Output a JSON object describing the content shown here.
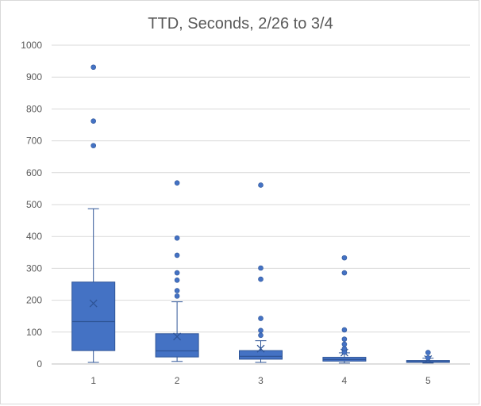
{
  "chart_data": {
    "type": "box",
    "title": "TTD, Seconds, 2/26 to 3/4",
    "xlabel": "",
    "ylabel": "",
    "ylim": [
      0,
      1000
    ],
    "yticks": [
      0,
      100,
      200,
      300,
      400,
      500,
      600,
      700,
      800,
      900,
      1000
    ],
    "categories": [
      "1",
      "2",
      "3",
      "4",
      "5"
    ],
    "grid": true,
    "legend": "none",
    "colors": {
      "box_fill": "#4472C4",
      "box_stroke": "#2F5597",
      "grid": "#d9d9d9",
      "axis": "#bfbfbf",
      "text": "#595959"
    },
    "boxes": [
      {
        "category": "1",
        "min": 5,
        "q1": 42,
        "median": 133,
        "q3": 257,
        "max": 487,
        "mean": 190,
        "outliers": [
          685,
          762,
          931
        ]
      },
      {
        "category": "2",
        "min": 8,
        "q1": 22,
        "median": 41,
        "q3": 95,
        "max": 195,
        "mean": 86,
        "outliers": [
          213,
          230,
          263,
          286,
          341,
          395,
          568
        ]
      },
      {
        "category": "3",
        "min": 5,
        "q1": 15,
        "median": 24,
        "q3": 42,
        "max": 73,
        "mean": 48,
        "outliers": [
          90,
          105,
          143,
          266,
          301,
          561
        ]
      },
      {
        "category": "4",
        "min": 3,
        "q1": 9,
        "median": 14,
        "q3": 21,
        "max": 35,
        "mean": 36,
        "outliers": [
          37,
          48,
          62,
          78,
          107,
          286,
          333
        ]
      },
      {
        "category": "5",
        "min": 3,
        "q1": 5,
        "median": 7,
        "q3": 11,
        "max": 18,
        "mean": 15,
        "outliers": [
          19,
          36
        ]
      }
    ]
  }
}
